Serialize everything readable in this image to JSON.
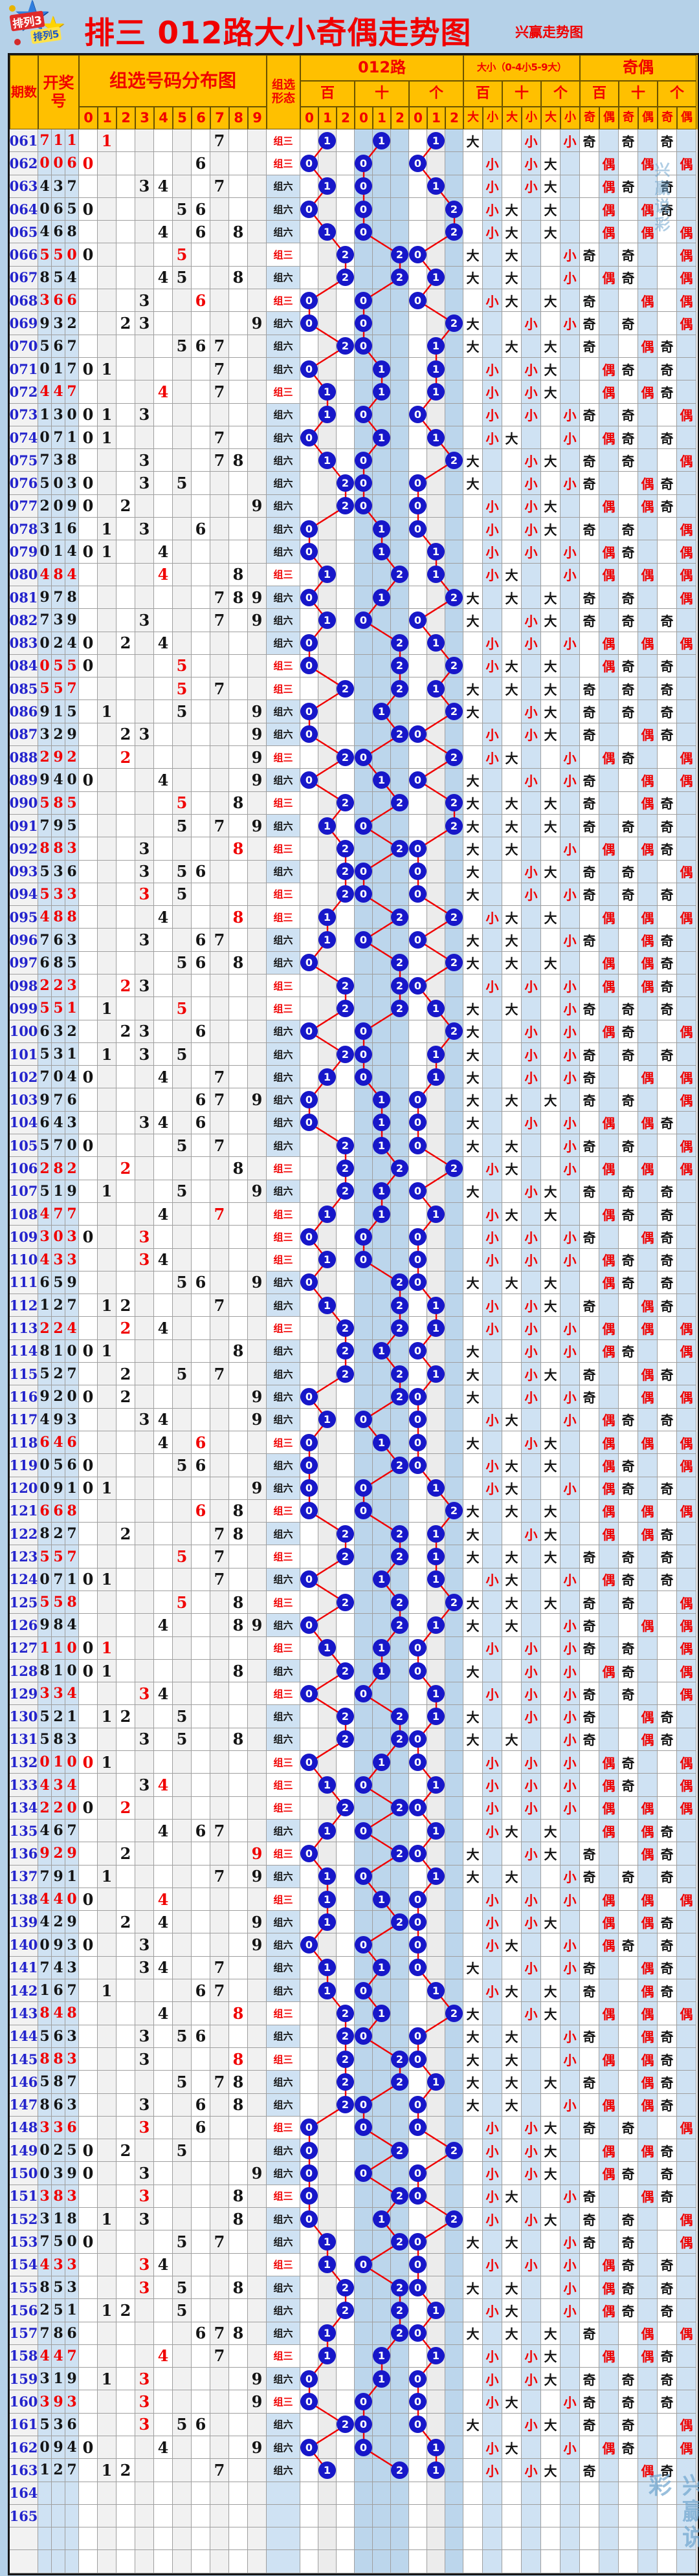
{
  "title": "排三 012路大小奇偶走势图",
  "brand": "兴赢走势图",
  "watermark": "兴赢说彩",
  "logo": {
    "line1": "排列3",
    "line2": "排列5"
  },
  "header": {
    "period": "期数",
    "draw": "开奖号",
    "distribution": "组选号码分布图",
    "distribution_digits": [
      "0",
      "1",
      "2",
      "3",
      "4",
      "5",
      "6",
      "7",
      "8",
      "9"
    ],
    "form": "组选形态",
    "roads": "012路",
    "positions": [
      "百",
      "十",
      "个"
    ],
    "road_digits": [
      "0",
      "1",
      "2"
    ],
    "size": "大小（0-4小5-9大）",
    "size_labels": [
      "大",
      "小"
    ],
    "parity": "奇偶",
    "parity_labels": [
      "奇",
      "偶"
    ]
  },
  "form_labels": {
    "pair": "组三",
    "distinct": "组六"
  },
  "extra_red_distribution": {
    "155": "3",
    "159": "3",
    "161": "3"
  },
  "colors": {
    "header_bg": "#ffc000",
    "accent_red": "#f00000",
    "period_blue": "#2323cc",
    "circle_blue": "#1717c9",
    "band_blue": "#bcd6ec",
    "cell_blue": "#cfe2f3",
    "line_red": "#f00000",
    "page_bg": "#b5d1e8"
  },
  "chart_data": {
    "type": "table",
    "title": "排三 012路大小奇偶走势图",
    "columns": [
      "期数",
      "开奖号"
    ],
    "periods": [
      "061",
      "062",
      "063",
      "064",
      "065",
      "066",
      "067",
      "068",
      "069",
      "070",
      "071",
      "072",
      "073",
      "074",
      "075",
      "076",
      "077",
      "078",
      "079",
      "080",
      "081",
      "082",
      "083",
      "084",
      "085",
      "086",
      "087",
      "088",
      "089",
      "090",
      "091",
      "092",
      "093",
      "094",
      "095",
      "096",
      "097",
      "098",
      "099",
      "100",
      "101",
      "102",
      "103",
      "104",
      "105",
      "106",
      "107",
      "108",
      "109",
      "110",
      "111",
      "112",
      "113",
      "114",
      "115",
      "116",
      "117",
      "118",
      "119",
      "120",
      "121",
      "122",
      "123",
      "124",
      "125",
      "126",
      "127",
      "128",
      "129",
      "130",
      "131",
      "132",
      "133",
      "134",
      "135",
      "136",
      "137",
      "138",
      "139",
      "140",
      "141",
      "142",
      "143",
      "144",
      "145",
      "146",
      "147",
      "148",
      "149",
      "150",
      "151",
      "152",
      "153",
      "154",
      "155",
      "156",
      "157",
      "158",
      "159",
      "160",
      "161",
      "162",
      "163"
    ],
    "draws": [
      "711",
      "006",
      "437",
      "065",
      "468",
      "550",
      "854",
      "366",
      "932",
      "567",
      "017",
      "447",
      "130",
      "071",
      "738",
      "503",
      "209",
      "316",
      "014",
      "484",
      "978",
      "739",
      "024",
      "055",
      "557",
      "915",
      "329",
      "292",
      "940",
      "585",
      "795",
      "883",
      "536",
      "533",
      "488",
      "763",
      "685",
      "223",
      "551",
      "632",
      "531",
      "704",
      "976",
      "643",
      "570",
      "282",
      "519",
      "477",
      "303",
      "433",
      "659",
      "127",
      "224",
      "810",
      "527",
      "920",
      "493",
      "646",
      "056",
      "091",
      "668",
      "827",
      "557",
      "071",
      "558",
      "984",
      "110",
      "810",
      "334",
      "521",
      "583",
      "010",
      "434",
      "220",
      "467",
      "929",
      "791",
      "440",
      "429",
      "093",
      "743",
      "167",
      "848",
      "563",
      "883",
      "587",
      "863",
      "336",
      "025",
      "039",
      "383",
      "318",
      "750",
      "433",
      "853",
      "251",
      "786",
      "447",
      "319",
      "393",
      "536",
      "094",
      "127"
    ],
    "empty_periods": [
      "164",
      "165"
    ],
    "blank_rows": 2,
    "derived_rules": {
      "road": "digit mod 3 plotted under 0/1/2 of 百/十/个",
      "size": "0-4小 5-9大",
      "parity": "odd 奇 / even 偶",
      "form": "repeated digit 组三 else 组六"
    }
  }
}
